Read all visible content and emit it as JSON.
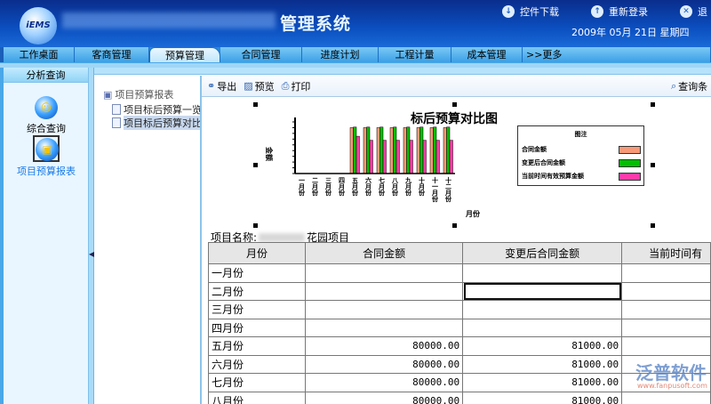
{
  "header": {
    "logo_text": "iEMS",
    "title": "管理系统",
    "links": [
      {
        "label": "控件下载",
        "icon": "download-icon"
      },
      {
        "label": "重新登录",
        "icon": "up-arrow-icon"
      },
      {
        "label": "退",
        "icon": "close-icon"
      }
    ],
    "date": "2009年 05月 21日 星期四"
  },
  "nav": {
    "tabs": [
      "工作桌面",
      "客商管理",
      "预算管理",
      "合同管理",
      "进度计划",
      "工程计量",
      "成本管理",
      ">>更多"
    ],
    "active": "预算管理"
  },
  "sidebar": {
    "title": "分析查询",
    "items": [
      {
        "label": "综合查询",
        "icon": "people-icon"
      },
      {
        "label": "项目预算报表",
        "icon": "report-icon",
        "selected": true
      }
    ]
  },
  "tree": {
    "root": "项目预算报表",
    "children": [
      "项目标后预算一览",
      "项目标后预算对比"
    ]
  },
  "toolbar": {
    "export": "导出",
    "preview": "预览",
    "print": "打印",
    "query": "查询条"
  },
  "chart_data": {
    "type": "bar",
    "title": "标后预算对比图",
    "xlabel": "月份",
    "ylabel": "金额",
    "legend_title": "图注",
    "legend_placement": "right",
    "categories": [
      "一月份",
      "二月份",
      "三月份",
      "四月份",
      "五月份",
      "六月份",
      "七月份",
      "八月份",
      "九月份",
      "十月份",
      "十一月份",
      "十二月份"
    ],
    "ylim": [
      0,
      90000
    ],
    "series": [
      {
        "name": "合同金额",
        "color": "#f79a78",
        "values": [
          0,
          0,
          0,
          0,
          80000,
          80000,
          80000,
          80000,
          80000,
          80000,
          80000,
          80000
        ]
      },
      {
        "name": "变更后合同金额",
        "color": "#00c000",
        "values": [
          0,
          0,
          0,
          0,
          81000,
          81000,
          81000,
          81000,
          81000,
          81000,
          81000,
          81000
        ]
      },
      {
        "name": "当前时间有效预算金额",
        "color": "#ff3aa8",
        "values": [
          0,
          0,
          0,
          0,
          65000,
          58000,
          58000,
          58000,
          58000,
          58000,
          58000,
          58000
        ]
      }
    ]
  },
  "report": {
    "project_label": "项目名称:",
    "project_name": "花园项目",
    "columns": [
      "月份",
      "合同金额",
      "变更后合同金额",
      "当前时间有"
    ],
    "rows": [
      [
        "一月份",
        "",
        ""
      ],
      [
        "二月份",
        "",
        ""
      ],
      [
        "三月份",
        "",
        ""
      ],
      [
        "四月份",
        "",
        ""
      ],
      [
        "五月份",
        "80000.00",
        "81000.00"
      ],
      [
        "六月份",
        "80000.00",
        "81000.00"
      ],
      [
        "七月份",
        "80000.00",
        "81000.00"
      ],
      [
        "八月份",
        "80000.00",
        "81000.00"
      ]
    ]
  },
  "watermark": {
    "text": "泛普软件",
    "url": "www.fanpusoft.com"
  }
}
